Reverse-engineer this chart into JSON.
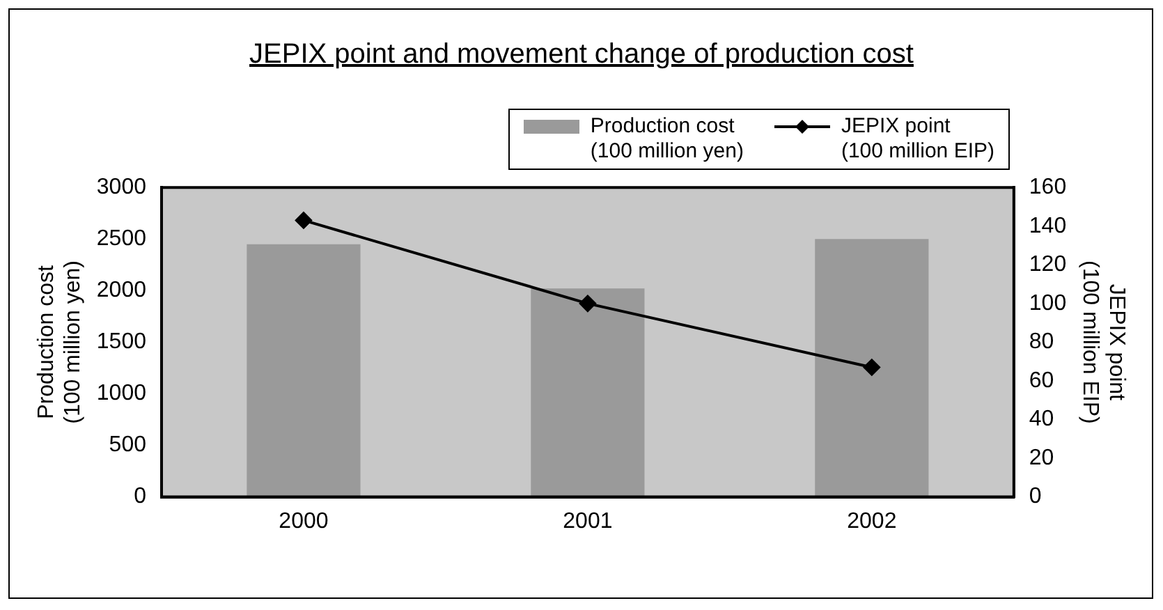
{
  "chart_data": {
    "type": "bar",
    "title": "JEPIX point and movement change of production cost",
    "categories": [
      "2000",
      "2001",
      "2002"
    ],
    "series": [
      {
        "name": "Production cost\n(100 million yen)",
        "color": "#9a9a9a",
        "values": [
          2450,
          2020,
          2500
        ]
      },
      {
        "name": "JEPIX point\n(100 million EIP)",
        "type": "line",
        "axis": "y2",
        "color": "#000000",
        "values": [
          143,
          100,
          67
        ]
      }
    ],
    "ylabel": "Production cost\n(100 million yen)",
    "y2label": "JEPIX point\n(100 million EIP)",
    "ylim": [
      0,
      3000
    ],
    "yticks": [
      0,
      500,
      1000,
      1500,
      2000,
      2500,
      3000
    ],
    "y2lim": [
      0,
      160
    ],
    "y2ticks": [
      0,
      20,
      40,
      60,
      80,
      100,
      120,
      140,
      160
    ],
    "legend": "top right",
    "marker": "diamond",
    "grid": false
  }
}
